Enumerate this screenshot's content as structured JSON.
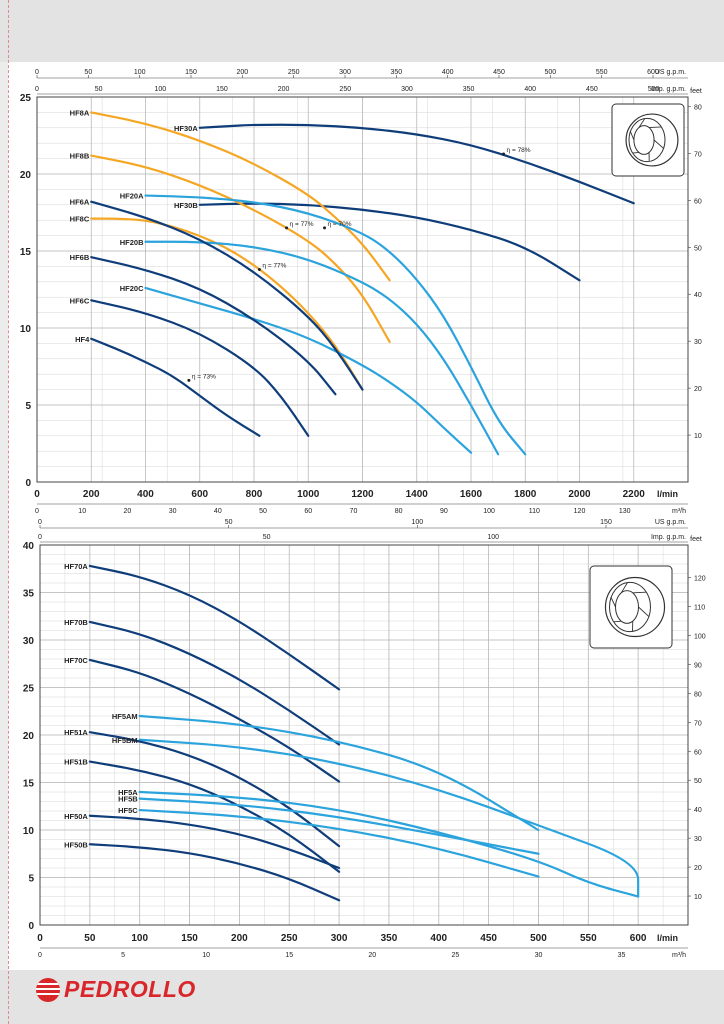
{
  "brand": {
    "name": "PEDROLLO",
    "color": "#d9262a"
  },
  "colors": {
    "dark": "#0f3d7a",
    "light": "#2ba3dc",
    "orange": "#f5a623",
    "grid": "#b9b9b9"
  },
  "chart_data": [
    {
      "type": "line",
      "x_unit": "l/min",
      "xlim": [
        0,
        2400
      ],
      "x_ticks": [
        "0",
        "200",
        "400",
        "600",
        "800",
        "1000",
        "1200",
        "1400",
        "1600",
        "1800",
        "2000",
        "2200"
      ],
      "y_left_unit": "m",
      "ylim": [
        0,
        25
      ],
      "y_ticks": [
        "0",
        "5",
        "10",
        "15",
        "20",
        "25"
      ],
      "y_right_label": "feet",
      "y_right_ticks": [
        "10",
        "20",
        "30",
        "40",
        "50",
        "60",
        "70",
        "80"
      ],
      "top_axis_1": {
        "label": "US g.p.m.",
        "ticks": [
          "0",
          "50",
          "100",
          "150",
          "200",
          "250",
          "300",
          "350",
          "400",
          "450",
          "500",
          "550",
          "600"
        ]
      },
      "top_axis_2": {
        "label": "Imp. g.p.m.",
        "ticks": [
          "0",
          "50",
          "100",
          "150",
          "200",
          "250",
          "300",
          "350",
          "400",
          "450",
          "500"
        ]
      },
      "bottom_axis_2": {
        "label": "m³/h",
        "ticks": [
          "0",
          "10",
          "20",
          "30",
          "40",
          "50",
          "60",
          "70",
          "80",
          "90",
          "100",
          "110",
          "120",
          "130"
        ]
      },
      "grid": true,
      "series": [
        {
          "name": "HF30A",
          "color": "dark",
          "points": [
            [
              600,
              23
            ],
            [
              700,
              23.1
            ],
            [
              800,
              23.2
            ],
            [
              1000,
              23.2
            ],
            [
              1200,
              23
            ],
            [
              1400,
              22.6
            ],
            [
              1600,
              21.9
            ],
            [
              1800,
              20.8
            ],
            [
              2000,
              19.5
            ],
            [
              2200,
              18.1
            ]
          ]
        },
        {
          "name": "HF30B",
          "color": "dark",
          "points": [
            [
              600,
              18
            ],
            [
              800,
              18.1
            ],
            [
              1000,
              18
            ],
            [
              1200,
              17.7
            ],
            [
              1400,
              17.2
            ],
            [
              1600,
              16.4
            ],
            [
              1800,
              15.3
            ],
            [
              2000,
              13.1
            ]
          ]
        },
        {
          "name": "HF8A",
          "color": "orange",
          "points": [
            [
              200,
              24
            ],
            [
              400,
              23.3
            ],
            [
              600,
              22.2
            ],
            [
              800,
              20.7
            ],
            [
              1000,
              18.7
            ],
            [
              1100,
              17.2
            ],
            [
              1200,
              15.5
            ],
            [
              1300,
              13.1
            ]
          ]
        },
        {
          "name": "HF8B",
          "color": "orange",
          "points": [
            [
              200,
              21.2
            ],
            [
              400,
              20.5
            ],
            [
              600,
              19.3
            ],
            [
              800,
              17.7
            ],
            [
              1000,
              15.7
            ],
            [
              1100,
              14.2
            ],
            [
              1200,
              12.2
            ],
            [
              1300,
              9.1
            ]
          ]
        },
        {
          "name": "HF8C",
          "color": "orange",
          "points": [
            [
              200,
              17.1
            ],
            [
              300,
              17.1
            ],
            [
              400,
              17
            ],
            [
              500,
              16.6
            ],
            [
              600,
              16
            ],
            [
              700,
              15.2
            ],
            [
              800,
              14.1
            ],
            [
              900,
              12.7
            ],
            [
              1000,
              11
            ],
            [
              1100,
              8.9
            ],
            [
              1200,
              6
            ]
          ]
        },
        {
          "name": "HF20A",
          "color": "light",
          "points": [
            [
              400,
              18.6
            ],
            [
              600,
              18.5
            ],
            [
              800,
              18.2
            ],
            [
              1000,
              17.5
            ],
            [
              1200,
              16.2
            ],
            [
              1300,
              15
            ],
            [
              1400,
              13.2
            ],
            [
              1500,
              10.8
            ],
            [
              1600,
              7.5
            ],
            [
              1700,
              3.9
            ],
            [
              1800,
              1.8
            ]
          ]
        },
        {
          "name": "HF20B",
          "color": "light",
          "points": [
            [
              400,
              15.6
            ],
            [
              600,
              15.6
            ],
            [
              800,
              15.3
            ],
            [
              1000,
              14.5
            ],
            [
              1200,
              13
            ],
            [
              1300,
              11.9
            ],
            [
              1400,
              10.3
            ],
            [
              1500,
              8
            ],
            [
              1600,
              5
            ],
            [
              1700,
              1.8
            ]
          ]
        },
        {
          "name": "HF20C",
          "color": "light",
          "points": [
            [
              400,
              12.6
            ],
            [
              600,
              11.6
            ],
            [
              800,
              10.6
            ],
            [
              1000,
              9.4
            ],
            [
              1200,
              7.6
            ],
            [
              1300,
              6.5
            ],
            [
              1400,
              5.2
            ],
            [
              1500,
              3.5
            ],
            [
              1600,
              1.9
            ]
          ]
        },
        {
          "name": "HF6A",
          "color": "dark",
          "points": [
            [
              200,
              18.2
            ],
            [
              400,
              17.2
            ],
            [
              600,
              15.8
            ],
            [
              800,
              13.7
            ],
            [
              1000,
              10.8
            ],
            [
              1100,
              8.7
            ],
            [
              1200,
              6
            ]
          ]
        },
        {
          "name": "HF6B",
          "color": "dark",
          "points": [
            [
              200,
              14.6
            ],
            [
              400,
              13.8
            ],
            [
              600,
              12.6
            ],
            [
              800,
              10.6
            ],
            [
              1000,
              7.9
            ],
            [
              1100,
              5.7
            ]
          ]
        },
        {
          "name": "HF6C",
          "color": "dark",
          "points": [
            [
              200,
              11.8
            ],
            [
              400,
              11
            ],
            [
              600,
              9.7
            ],
            [
              800,
              7.5
            ],
            [
              900,
              5.6
            ],
            [
              1000,
              3
            ]
          ]
        },
        {
          "name": "HF4",
          "color": "dark",
          "points": [
            [
              200,
              9.3
            ],
            [
              300,
              8.6
            ],
            [
              400,
              7.8
            ],
            [
              500,
              6.9
            ],
            [
              600,
              5.6
            ],
            [
              700,
              4.3
            ],
            [
              820,
              3
            ]
          ]
        }
      ],
      "annotations": [
        {
          "text": "η = 78%",
          "x": 1720,
          "y": 21.3
        },
        {
          "text": "η = 77%",
          "x": 920,
          "y": 16.5
        },
        {
          "text": "η = 70%",
          "x": 1060,
          "y": 16.5
        },
        {
          "text": "η = 77%",
          "x": 820,
          "y": 13.8
        },
        {
          "text": "η = 73%",
          "x": 560,
          "y": 6.6
        }
      ]
    },
    {
      "type": "line",
      "x_unit": "l/min",
      "xlim": [
        0,
        650
      ],
      "x_ticks": [
        "0",
        "50",
        "100",
        "150",
        "200",
        "250",
        "300",
        "350",
        "400",
        "450",
        "500",
        "550",
        "600"
      ],
      "y_left_unit": "m",
      "ylim": [
        0,
        40
      ],
      "y_ticks": [
        "0",
        "5",
        "10",
        "15",
        "20",
        "25",
        "30",
        "35",
        "40"
      ],
      "y_right_label": "feet",
      "y_right_ticks": [
        "10",
        "20",
        "30",
        "40",
        "50",
        "60",
        "70",
        "80",
        "90",
        "100",
        "110",
        "120"
      ],
      "top_axis_1": {
        "label": "US g.p.m.",
        "ticks": [
          "0",
          "50",
          "100",
          "150"
        ]
      },
      "top_axis_2": {
        "label": "Imp. g.p.m.",
        "ticks": [
          "0",
          "50",
          "100"
        ]
      },
      "bottom_axis_2": {
        "label": "m³/h",
        "ticks": [
          "0",
          "5",
          "10",
          "15",
          "20",
          "25",
          "30",
          "35"
        ]
      },
      "grid": true,
      "series": [
        {
          "name": "HF70A",
          "color": "dark",
          "points": [
            [
              50,
              37.8
            ],
            [
              100,
              36.7
            ],
            [
              150,
              34.8
            ],
            [
              200,
              32
            ],
            [
              250,
              28.5
            ],
            [
              300,
              24.8
            ]
          ]
        },
        {
          "name": "HF70B",
          "color": "dark",
          "points": [
            [
              50,
              31.9
            ],
            [
              100,
              30.7
            ],
            [
              150,
              28.6
            ],
            [
              200,
              25.9
            ],
            [
              250,
              22.6
            ],
            [
              300,
              19
            ]
          ]
        },
        {
          "name": "HF70C",
          "color": "dark",
          "points": [
            [
              50,
              27.9
            ],
            [
              100,
              26.6
            ],
            [
              150,
              24.4
            ],
            [
              200,
              21.7
            ],
            [
              250,
              18.7
            ],
            [
              300,
              15.1
            ]
          ]
        },
        {
          "name": "HF5AM",
          "color": "light",
          "points": [
            [
              100,
              22
            ],
            [
              200,
              21.2
            ],
            [
              300,
              19.4
            ],
            [
              400,
              16.4
            ],
            [
              500,
              10
            ]
          ]
        },
        {
          "name": "HF5BM",
          "color": "light",
          "points": [
            [
              100,
              19.5
            ],
            [
              200,
              18.8
            ],
            [
              300,
              17.1
            ],
            [
              400,
              14.3
            ],
            [
              500,
              10.5
            ],
            [
              600,
              6.6
            ],
            [
              600,
              3
            ]
          ]
        },
        {
          "name": "HF51A",
          "color": "dark",
          "points": [
            [
              50,
              20.3
            ],
            [
              100,
              19.4
            ],
            [
              150,
              17.9
            ],
            [
              200,
              15.6
            ],
            [
              250,
              12.4
            ],
            [
              300,
              8.3
            ]
          ]
        },
        {
          "name": "HF51B",
          "color": "dark",
          "points": [
            [
              50,
              17.2
            ],
            [
              100,
              16.3
            ],
            [
              150,
              14.9
            ],
            [
              200,
              12.6
            ],
            [
              250,
              9.6
            ],
            [
              300,
              5.6
            ]
          ]
        },
        {
          "name": "HF5A",
          "color": "light",
          "points": [
            [
              100,
              14
            ],
            [
              200,
              13.5
            ],
            [
              300,
              12.2
            ],
            [
              400,
              9.8
            ],
            [
              500,
              6.8
            ],
            [
              550,
              4.4
            ],
            [
              600,
              3
            ]
          ]
        },
        {
          "name": "HF5B",
          "color": "light",
          "points": [
            [
              100,
              13.3
            ],
            [
              200,
              12.7
            ],
            [
              300,
              11.4
            ],
            [
              400,
              9.5
            ],
            [
              500,
              7.5
            ]
          ]
        },
        {
          "name": "HF5C",
          "color": "light",
          "points": [
            [
              100,
              12.1
            ],
            [
              200,
              11.5
            ],
            [
              300,
              10.2
            ],
            [
              400,
              8.1
            ],
            [
              500,
              5.1
            ]
          ]
        },
        {
          "name": "HF50A",
          "color": "dark",
          "points": [
            [
              50,
              11.5
            ],
            [
              100,
              11.2
            ],
            [
              150,
              10.6
            ],
            [
              200,
              9.6
            ],
            [
              250,
              8
            ],
            [
              300,
              6
            ]
          ]
        },
        {
          "name": "HF50B",
          "color": "dark",
          "points": [
            [
              50,
              8.5
            ],
            [
              100,
              8.2
            ],
            [
              150,
              7.6
            ],
            [
              200,
              6.5
            ],
            [
              250,
              4.9
            ],
            [
              300,
              2.6
            ]
          ]
        }
      ]
    }
  ]
}
